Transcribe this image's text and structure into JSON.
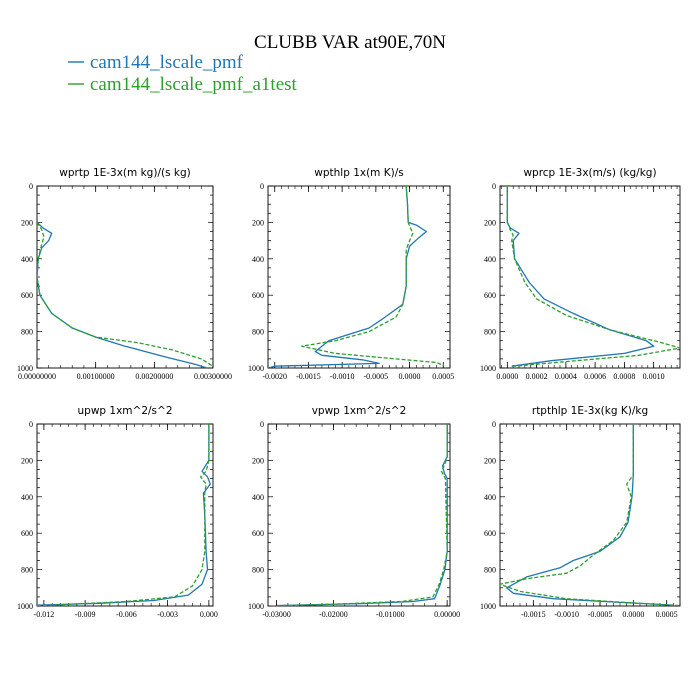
{
  "figure": {
    "title": "CLUBB VAR at90E,70N",
    "legend": [
      {
        "label": "cam144_lscale_pmf",
        "color": "#1f77b4",
        "dash": false
      },
      {
        "label": "cam144_lscale_pmf_a1test",
        "color": "#2ca02c",
        "dash": true
      }
    ]
  },
  "chart_data": [
    {
      "type": "line",
      "title": "wprtp  1E-3x(m kg)/(s kg)",
      "xlim": [
        0,
        0.003
      ],
      "ylim": [
        0,
        1000
      ],
      "xticks": [
        0,
        0.001,
        0.002,
        0.003
      ],
      "xtick_labels": [
        "0.00000000",
        "0.00100000",
        "0.00200000",
        "0.00300000"
      ],
      "yticks": [
        0,
        200,
        400,
        600,
        800,
        1000
      ],
      "ytick_labels": [
        "0",
        "200",
        "400",
        "600",
        "800",
        "1000"
      ],
      "series": [
        {
          "name": "cam144_lscale_pmf",
          "points": [
            [
              0.0,
              200
            ],
            [
              0.0001,
              230
            ],
            [
              0.00025,
              260
            ],
            [
              0.0002,
              300
            ],
            [
              8e-05,
              340
            ],
            [
              2e-05,
              400
            ],
            [
              0.0,
              500
            ],
            [
              5e-05,
              600
            ],
            [
              0.00025,
              700
            ],
            [
              0.0006,
              780
            ],
            [
              0.001,
              830
            ],
            [
              0.0015,
              880
            ],
            [
              0.0022,
              940
            ],
            [
              0.0027,
              980
            ],
            [
              0.0029,
              1000
            ]
          ]
        },
        {
          "name": "cam144_lscale_pmf_a1test",
          "points": [
            [
              0.0,
              200
            ],
            [
              8e-05,
              240
            ],
            [
              0.00012,
              280
            ],
            [
              8e-05,
              320
            ],
            [
              2e-05,
              400
            ],
            [
              0.0,
              500
            ],
            [
              5e-05,
              600
            ],
            [
              0.00025,
              700
            ],
            [
              0.0006,
              780
            ],
            [
              0.001,
              830
            ],
            [
              0.0017,
              860
            ],
            [
              0.0023,
              900
            ],
            [
              0.0028,
              950
            ],
            [
              0.003,
              990
            ]
          ]
        }
      ]
    },
    {
      "type": "line",
      "title": "wpthlp  1x(m K)/s",
      "xlim": [
        -0.0021,
        0.0006
      ],
      "ylim": [
        0,
        1000
      ],
      "xticks": [
        -0.002,
        -0.0015,
        -0.001,
        -0.0005,
        0.0,
        0.0005
      ],
      "xtick_labels": [
        "-0.0020",
        "-0.0015",
        "-0.0010",
        "-0.0005",
        "0.0000",
        "0.0005"
      ],
      "yticks": [
        0,
        200,
        400,
        600,
        800,
        1000
      ],
      "ytick_labels": [
        "0",
        "200",
        "400",
        "600",
        "800",
        "1000"
      ],
      "series": [
        {
          "name": "cam144_lscale_pmf",
          "points": [
            [
              -5e-05,
              0
            ],
            [
              -3e-05,
              100
            ],
            [
              -2e-05,
              200
            ],
            [
              0.0001,
              215
            ],
            [
              0.00025,
              250
            ],
            [
              0.00012,
              290
            ],
            [
              0.0,
              330
            ],
            [
              -5e-05,
              400
            ],
            [
              -5e-05,
              550
            ],
            [
              -0.0001,
              650
            ],
            [
              -0.0004,
              730
            ],
            [
              -0.0006,
              780
            ],
            [
              -0.0012,
              850
            ],
            [
              -0.0014,
              910
            ],
            [
              -0.0013,
              930
            ],
            [
              -0.0007,
              955
            ],
            [
              -0.00045,
              975
            ],
            [
              -0.002,
              990
            ],
            [
              -0.0021,
              1000
            ]
          ]
        },
        {
          "name": "cam144_lscale_pmf_a1test",
          "points": [
            [
              -5e-05,
              0
            ],
            [
              -3e-05,
              100
            ],
            [
              -2e-05,
              200
            ],
            [
              0.0,
              220
            ],
            [
              5e-05,
              260
            ],
            [
              0.0,
              300
            ],
            [
              -5e-05,
              350
            ],
            [
              -5e-05,
              550
            ],
            [
              -0.0001,
              650
            ],
            [
              -0.0002,
              720
            ],
            [
              -0.0006,
              800
            ],
            [
              -0.0011,
              850
            ],
            [
              -0.0016,
              880
            ],
            [
              -0.0011,
              920
            ],
            [
              -0.0002,
              950
            ],
            [
              0.0004,
              970
            ],
            [
              0.0005,
              985
            ]
          ]
        }
      ]
    },
    {
      "type": "line",
      "title": "wprcp  1E-3x(m/s) (kg/kg)",
      "xlim": [
        -5e-05,
        0.00118
      ],
      "ylim": [
        0,
        1000
      ],
      "xticks": [
        0.0,
        0.0002,
        0.0004,
        0.0006,
        0.0008,
        0.001
      ],
      "xtick_labels": [
        "0.0000",
        "0.0002",
        "0.0004",
        "0.0006",
        "0.0008",
        "0.0010"
      ],
      "yticks": [
        0,
        200,
        400,
        600,
        800,
        1000
      ],
      "ytick_labels": [
        "0",
        "200",
        "400",
        "600",
        "800",
        "1000"
      ],
      "series": [
        {
          "name": "cam144_lscale_pmf",
          "points": [
            [
              0.0,
              0
            ],
            [
              0.0,
              200
            ],
            [
              2e-05,
              230
            ],
            [
              8e-05,
              260
            ],
            [
              4e-05,
              300
            ],
            [
              5e-05,
              400
            ],
            [
              0.00015,
              530
            ],
            [
              0.00025,
              620
            ],
            [
              0.00045,
              700
            ],
            [
              0.0007,
              790
            ],
            [
              0.00095,
              850
            ],
            [
              0.001,
              880
            ],
            [
              0.0008,
              920
            ],
            [
              0.0003,
              960
            ],
            [
              3e-05,
              990
            ]
          ]
        },
        {
          "name": "cam144_lscale_pmf_a1test",
          "points": [
            [
              0.0,
              0
            ],
            [
              0.0,
              200
            ],
            [
              2e-05,
              240
            ],
            [
              4e-05,
              270
            ],
            [
              3e-05,
              300
            ],
            [
              5e-05,
              400
            ],
            [
              0.00012,
              530
            ],
            [
              0.0002,
              620
            ],
            [
              0.0004,
              710
            ],
            [
              0.0007,
              790
            ],
            [
              0.00105,
              860
            ],
            [
              0.00118,
              890
            ],
            [
              0.0009,
              930
            ],
            [
              0.0004,
              965
            ],
            [
              5e-05,
              990
            ]
          ]
        }
      ]
    },
    {
      "type": "line",
      "title": "upwp  1xm^2/s^2",
      "xlim": [
        -0.0125,
        0.0003
      ],
      "ylim": [
        0,
        1000
      ],
      "xticks": [
        -0.012,
        -0.009,
        -0.006,
        -0.003,
        0.0
      ],
      "xtick_labels": [
        "-0.012",
        "-0.009",
        "-0.006",
        "-0.003",
        "0.000"
      ],
      "yticks": [
        0,
        200,
        400,
        600,
        800,
        1000
      ],
      "ytick_labels": [
        "0",
        "200",
        "400",
        "600",
        "800",
        "1000"
      ],
      "series": [
        {
          "name": "cam144_lscale_pmf",
          "points": [
            [
              0.0,
              0
            ],
            [
              0.0,
              150
            ],
            [
              0.0,
              200
            ],
            [
              -0.0005,
              260
            ],
            [
              -0.0001,
              290
            ],
            [
              0.0001,
              330
            ],
            [
              -0.0004,
              380
            ],
            [
              -0.0003,
              500
            ],
            [
              -0.0002,
              700
            ],
            [
              -0.0001,
              800
            ],
            [
              -0.0005,
              880
            ],
            [
              -0.0015,
              940
            ],
            [
              -0.004,
              970
            ],
            [
              -0.008,
              985
            ],
            [
              -0.0125,
              995
            ]
          ]
        },
        {
          "name": "cam144_lscale_pmf_a1test",
          "points": [
            [
              0.0,
              0
            ],
            [
              0.0,
              150
            ],
            [
              0.0,
              200
            ],
            [
              -0.0002,
              260
            ],
            [
              -0.0006,
              290
            ],
            [
              -0.0002,
              330
            ],
            [
              -0.0003,
              380
            ],
            [
              -0.0003,
              500
            ],
            [
              -0.0003,
              700
            ],
            [
              -0.0005,
              800
            ],
            [
              -0.0012,
              890
            ],
            [
              -0.0025,
              950
            ],
            [
              -0.006,
              975
            ],
            [
              -0.01,
              990
            ],
            [
              -0.0125,
              1000
            ]
          ]
        }
      ]
    },
    {
      "type": "line",
      "title": "vpwp  1xm^2/s^2",
      "xlim": [
        -0.0315,
        0.0005
      ],
      "ylim": [
        0,
        1000
      ],
      "xticks": [
        -0.03,
        -0.02,
        -0.01,
        0.0
      ],
      "xtick_labels": [
        "-0.03000",
        "-0.02000",
        "-0.01000",
        "0.00000"
      ],
      "yticks": [
        0,
        200,
        400,
        600,
        800,
        1000
      ],
      "ytick_labels": [
        "0",
        "200",
        "400",
        "600",
        "800",
        "1000"
      ],
      "series": [
        {
          "name": "cam144_lscale_pmf",
          "points": [
            [
              0.0,
              0
            ],
            [
              0.0,
              180
            ],
            [
              -0.0008,
              230
            ],
            [
              -0.0005,
              270
            ],
            [
              0.0,
              300
            ],
            [
              0.0,
              700
            ],
            [
              -0.0004,
              800
            ],
            [
              -0.0012,
              880
            ],
            [
              -0.0022,
              960
            ],
            [
              -0.006,
              975
            ],
            [
              -0.015,
              987
            ],
            [
              -0.03,
              997
            ]
          ]
        },
        {
          "name": "cam144_lscale_pmf_a1test",
          "points": [
            [
              0.0,
              0
            ],
            [
              0.0,
              180
            ],
            [
              -0.0004,
              220
            ],
            [
              -0.001,
              260
            ],
            [
              -0.0003,
              300
            ],
            [
              0.0,
              700
            ],
            [
              -0.0006,
              800
            ],
            [
              -0.0014,
              880
            ],
            [
              -0.0025,
              950
            ],
            [
              -0.008,
              975
            ],
            [
              -0.02,
              990
            ],
            [
              -0.031,
              1000
            ]
          ]
        }
      ]
    },
    {
      "type": "line",
      "title": "rtpthlp  1E-3x(kg K)/kg",
      "xlim": [
        -0.002,
        0.0007
      ],
      "ylim": [
        0,
        1000
      ],
      "xticks": [
        -0.0015,
        -0.001,
        -0.0005,
        0.0,
        0.0005
      ],
      "xtick_labels": [
        "-0.0015",
        "-0.0010",
        "-0.0005",
        "0.0000",
        "0.0005"
      ],
      "yticks": [
        0,
        200,
        400,
        600,
        800,
        1000
      ],
      "ytick_labels": [
        "0",
        "200",
        "400",
        "600",
        "800",
        "1000"
      ],
      "series": [
        {
          "name": "cam144_lscale_pmf",
          "points": [
            [
              0.0,
              0
            ],
            [
              0.0,
              280
            ],
            [
              -2e-05,
              400
            ],
            [
              -8e-05,
              540
            ],
            [
              -0.0002,
              620
            ],
            [
              -0.0005,
              700
            ],
            [
              -0.0009,
              750
            ],
            [
              -0.0011,
              790
            ],
            [
              -0.0016,
              840
            ],
            [
              -0.0019,
              900
            ],
            [
              -0.0018,
              930
            ],
            [
              -0.0012,
              960
            ],
            [
              -0.0002,
              980
            ],
            [
              0.0006,
              995
            ]
          ]
        },
        {
          "name": "cam144_lscale_pmf_a1test",
          "points": [
            [
              0.0,
              0
            ],
            [
              0.0,
              280
            ],
            [
              -0.0001,
              330
            ],
            [
              -3e-05,
              400
            ],
            [
              -0.0001,
              540
            ],
            [
              -0.0003,
              640
            ],
            [
              -0.0006,
              720
            ],
            [
              -0.0008,
              780
            ],
            [
              -0.001,
              820
            ],
            [
              -0.0016,
              850
            ],
            [
              -0.002,
              880
            ],
            [
              -0.0017,
              920
            ],
            [
              -0.001,
              960
            ],
            [
              0.0001,
              985
            ],
            [
              0.0007,
              998
            ]
          ]
        }
      ]
    }
  ]
}
